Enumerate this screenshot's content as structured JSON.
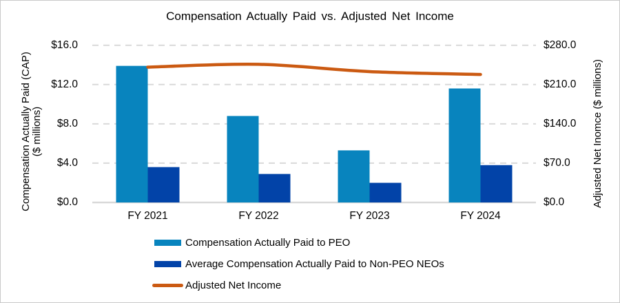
{
  "chart_data": {
    "type": "combo",
    "title": "Compensation Actually Paid vs. Adjusted Net Income",
    "categories": [
      "FY 2021",
      "FY 2022",
      "FY 2023",
      "FY 2024"
    ],
    "series": [
      {
        "name": "Compensation Actually Paid to PEO",
        "type": "bar",
        "axis": "left",
        "color": "#0884be",
        "values": [
          13.9,
          8.8,
          5.3,
          11.6
        ]
      },
      {
        "name": "Average Compensation Actually Paid to Non-PEO NEOs",
        "type": "bar",
        "axis": "left",
        "color": "#0243a8",
        "values": [
          3.6,
          2.9,
          2.0,
          3.8
        ]
      },
      {
        "name": "Adjusted Net Income",
        "type": "line",
        "axis": "right",
        "color": "#cb5a12",
        "smooth": true,
        "values": [
          241,
          246,
          233,
          228
        ]
      }
    ],
    "left_axis": {
      "title_line1": "Compensation Actually Paid (CAP)",
      "title_line2": "($ millions)",
      "ticks": [
        "$16.0",
        "$12.0",
        "$8.0",
        "$4.0",
        "$0.0"
      ],
      "tick_values": [
        16,
        12,
        8,
        4,
        0
      ],
      "range": [
        0,
        16
      ]
    },
    "right_axis": {
      "title": "Adjusted Net Inomce ($ millions)",
      "ticks": [
        "$280.0",
        "$210.0",
        "$140.0",
        "$70.0",
        "$0.0"
      ],
      "tick_values": [
        280,
        210,
        140,
        70,
        0
      ],
      "range": [
        0,
        280
      ]
    },
    "grid": true,
    "legend_position": "bottom-left",
    "colors": {
      "gridline": "#d9d9d9",
      "baseline": "#d9d9d9",
      "text": "#000000"
    }
  }
}
